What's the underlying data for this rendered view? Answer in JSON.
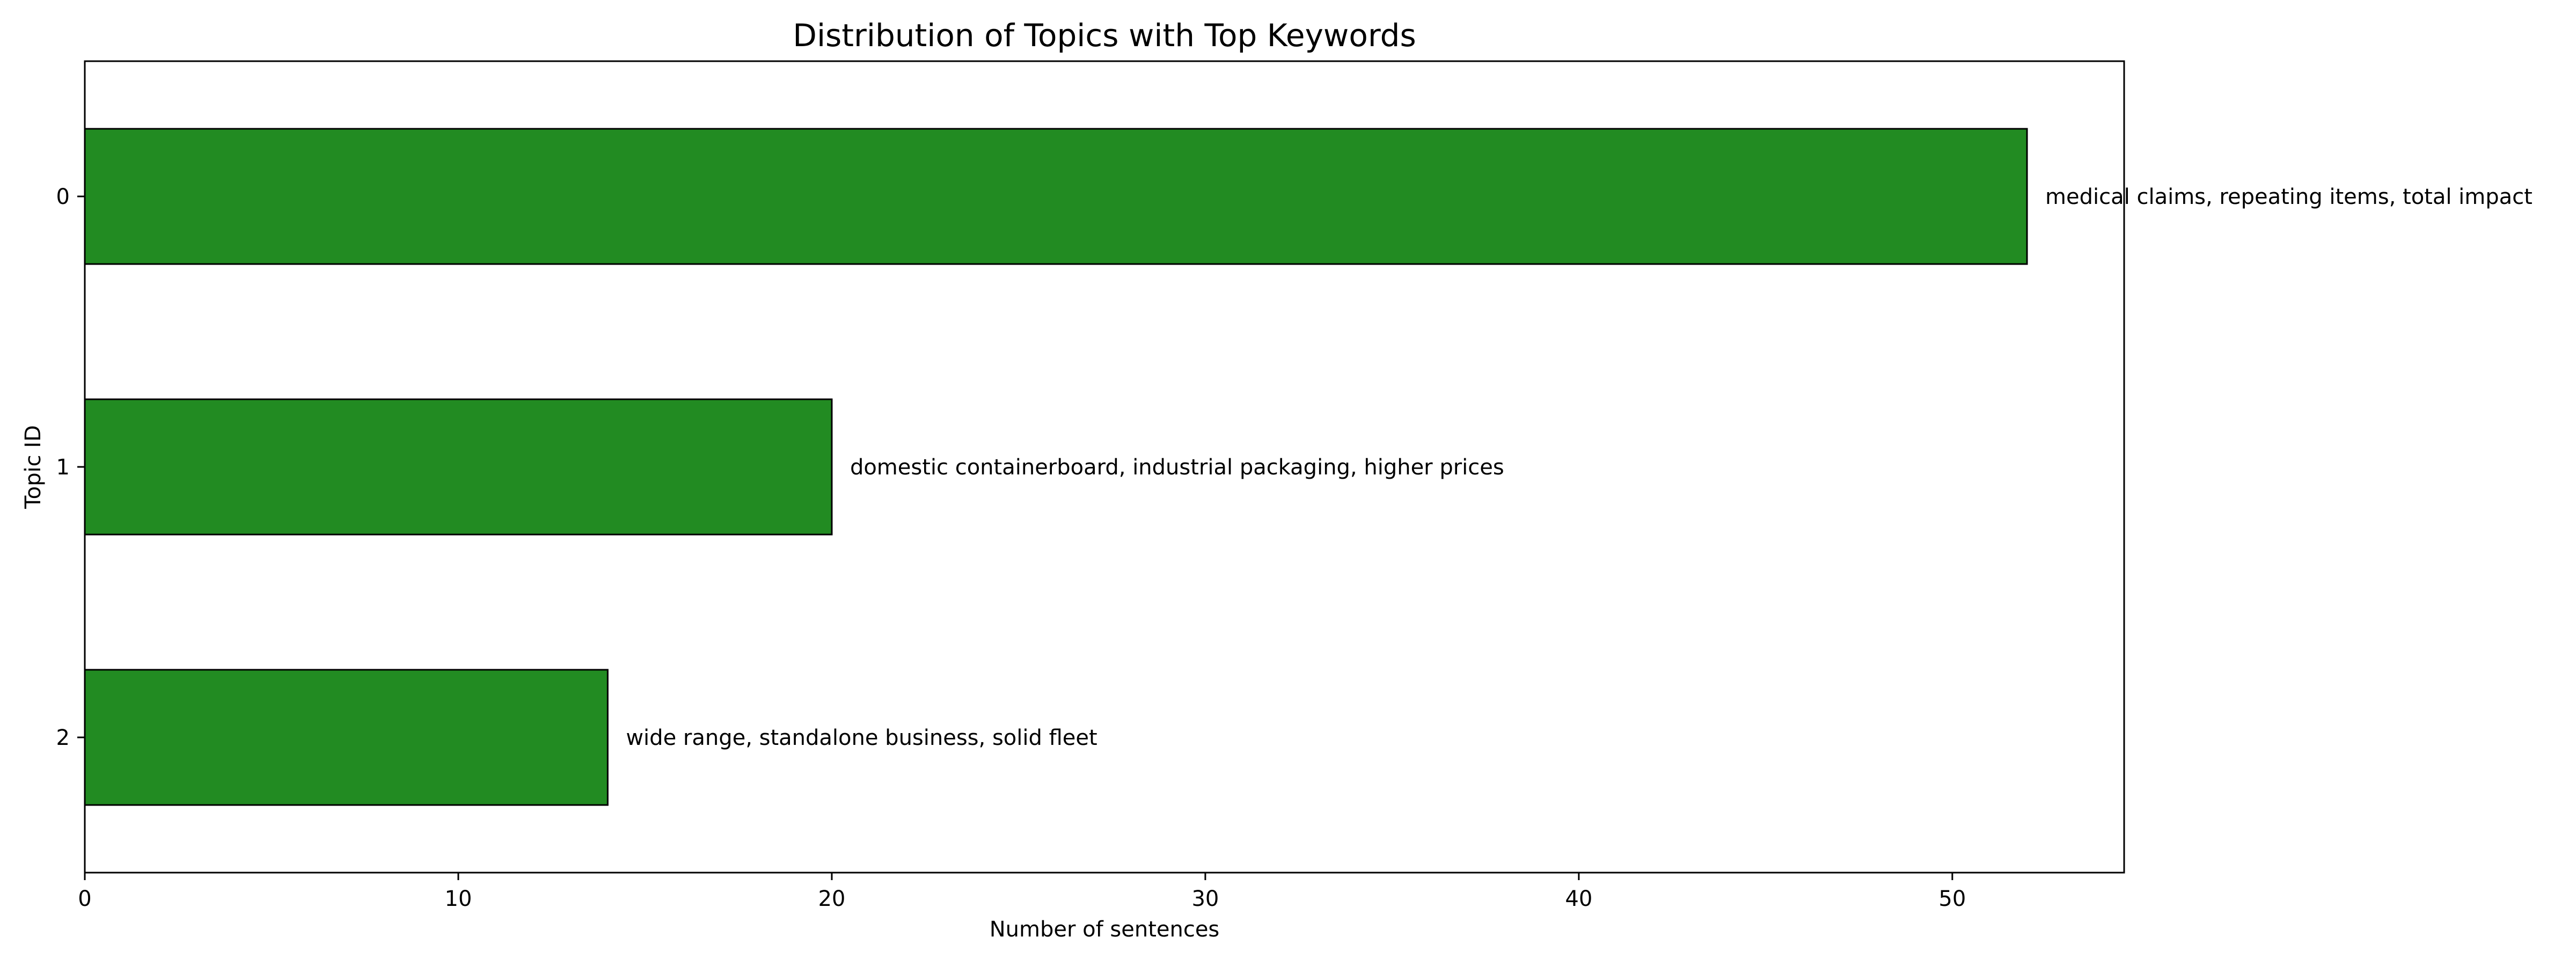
{
  "chart_data": {
    "type": "bar",
    "orientation": "horizontal",
    "title": "Distribution of Topics with Top Keywords",
    "xlabel": "Number of sentences",
    "ylabel": "Topic ID",
    "categories": [
      "0",
      "1",
      "2"
    ],
    "values": [
      52,
      20,
      14
    ],
    "bar_labels": [
      "medical claims, repeating items, total impact",
      "domestic containerboard, industrial packaging, higher prices",
      "wide range, standalone business, solid fleet"
    ],
    "xlim": [
      0,
      54.6
    ],
    "xticks": [
      0,
      10,
      20,
      30,
      40,
      50
    ],
    "grid": false,
    "bar_color": "#228b22",
    "edge_color": "#000000"
  }
}
